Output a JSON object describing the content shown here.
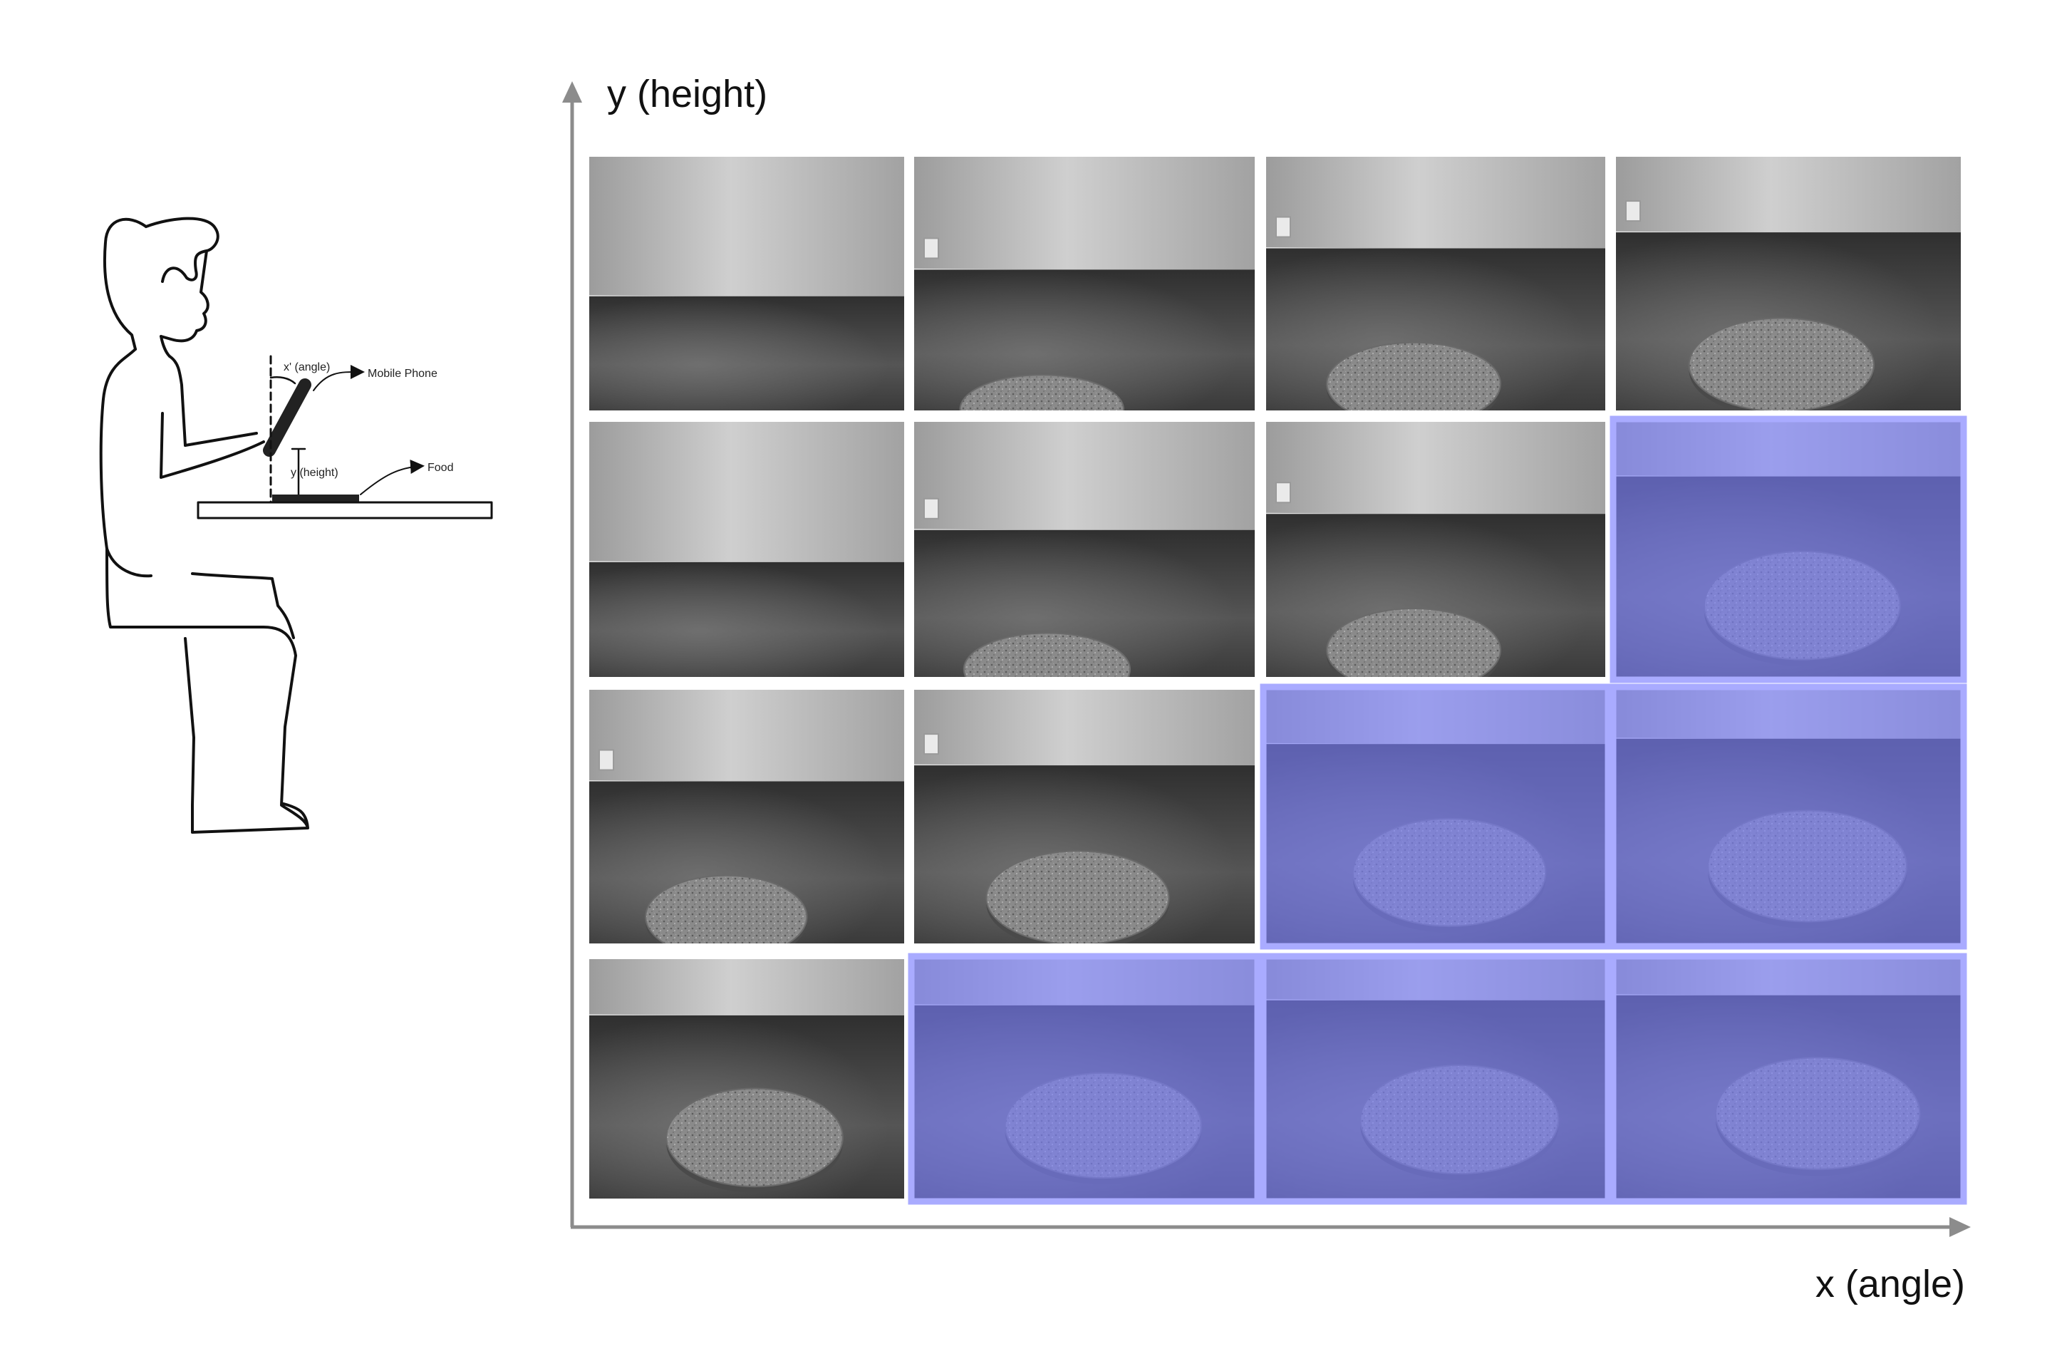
{
  "axes": {
    "y_label": "y (height)",
    "x_label": "x (angle)",
    "color": "#8c8c8c"
  },
  "illustration": {
    "angle_label": "x' (angle)",
    "phone_label": "Mobile Phone",
    "height_label": "y (height)",
    "food_label": "Food"
  },
  "grid": {
    "rows": 4,
    "cols": 4,
    "highlight_color": "#7b80ff",
    "highlight_border": "#a9abff",
    "cells": [
      [
        {
          "disc": 0.0,
          "hl": false
        },
        {
          "disc": 0.25,
          "hl": false
        },
        {
          "disc": 0.45,
          "hl": false
        },
        {
          "disc": 0.6,
          "hl": false
        }
      ],
      [
        {
          "disc": 0.0,
          "hl": false
        },
        {
          "disc": 0.3,
          "hl": false
        },
        {
          "disc": 0.45,
          "hl": false
        },
        {
          "disc": 0.8,
          "hl": true
        }
      ],
      [
        {
          "disc": 0.45,
          "hl": false
        },
        {
          "disc": 0.6,
          "hl": false
        },
        {
          "disc": 0.8,
          "hl": true
        },
        {
          "disc": 0.85,
          "hl": true
        }
      ],
      [
        {
          "disc": 0.75,
          "hl": false
        },
        {
          "disc": 0.85,
          "hl": true
        },
        {
          "disc": 0.9,
          "hl": true
        },
        {
          "disc": 0.95,
          "hl": true
        }
      ]
    ]
  }
}
